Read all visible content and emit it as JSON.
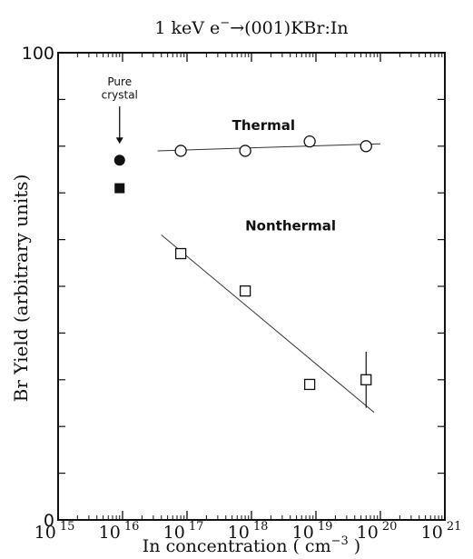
{
  "chart_data": {
    "type": "scatter",
    "title": "1 keV e",
    "title_sup": "−",
    "title_rest": "(001)KBr:In",
    "xlabel": "In concentration  ( cm",
    "xlabel_sup": "−3",
    "xlabel_end": " )",
    "ylabel": "Br Yield (arbitrary units)",
    "x_scale": "log",
    "xlim": [
      1000000000000000.0,
      1e+21
    ],
    "ylim": [
      0,
      100
    ],
    "x_tick_base": "10",
    "x_tick_exponents": [
      "15",
      "16",
      "17",
      "18",
      "19",
      "20",
      "21"
    ],
    "y_tick_labels": [
      {
        "value": 0,
        "text": "0"
      },
      {
        "value": 100,
        "text": "100"
      }
    ],
    "y_minor_ticks": [
      10,
      20,
      30,
      40,
      50,
      60,
      70,
      80,
      90
    ],
    "grid": false,
    "series": [
      {
        "name": "Thermal",
        "marker": "open-circle",
        "points": [
          {
            "x": 8e+16,
            "y": 79
          },
          {
            "x": 8e+17,
            "y": 79
          },
          {
            "x": 8e+18,
            "y": 81
          },
          {
            "x": 6e+19,
            "y": 80
          }
        ],
        "fit": {
          "x": [
            3.5e+16,
            1e+20
          ],
          "y": [
            79,
            80.5
          ]
        }
      },
      {
        "name": "Nonthermal",
        "marker": "open-square",
        "points": [
          {
            "x": 8e+16,
            "y": 57
          },
          {
            "x": 8e+17,
            "y": 49
          },
          {
            "x": 8e+18,
            "y": 29
          },
          {
            "x": 6e+19,
            "y": 30,
            "err": [
              24,
              36
            ]
          }
        ],
        "fit": {
          "x": [
            4e+16,
            8e+19
          ],
          "y": [
            61,
            23
          ]
        }
      }
    ],
    "pure_crystal": {
      "label_line1": "Pure",
      "label_line2": "crystal",
      "x": 9000000000000000.0,
      "thermal_y": 77,
      "nonthermal_y": 71
    },
    "annotations": {
      "thermal": "Thermal",
      "nonthermal": "Nonthermal"
    }
  }
}
